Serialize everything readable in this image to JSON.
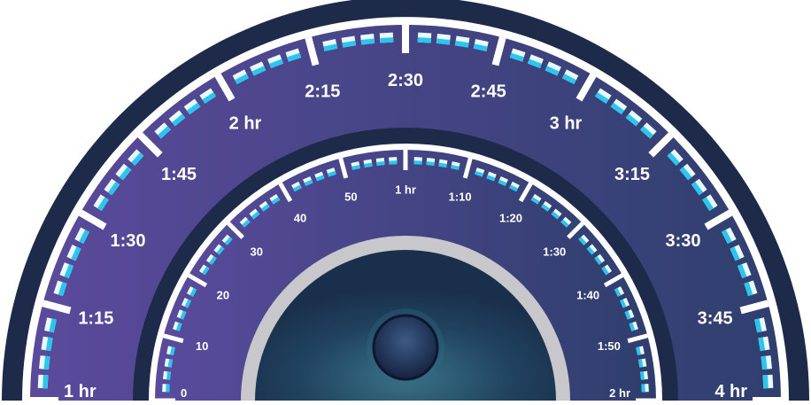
{
  "outer_scale": {
    "labels": [
      "1 hr",
      "1:15",
      "1:30",
      "1:45",
      "2 hr",
      "2:15",
      "2:30",
      "2:45",
      "3 hr",
      "3:15",
      "3:30",
      "3:45",
      "4 hr"
    ],
    "min_minutes": 60,
    "max_minutes": 240,
    "major_step_minutes": 15,
    "minor_ticks_per_major": 4
  },
  "inner_scale": {
    "labels": [
      "0",
      "10",
      "20",
      "30",
      "40",
      "50",
      "1 hr",
      "1:10",
      "1:20",
      "1:30",
      "1:40",
      "1:50",
      "2 hr"
    ],
    "min_minutes": 0,
    "max_minutes": 120,
    "major_step_minutes": 10,
    "minor_ticks_per_major": 4
  },
  "colors": {
    "outer_bezel": "#1e2a4a",
    "outer_face_left": "#5b4a9c",
    "outer_face_right": "#2f3f6e",
    "inner_bezel": "#1e2a4a",
    "inner_face_left": "#5a4b9d",
    "inner_face_right": "#2e3e6c",
    "ring_white": "#ffffff",
    "minor_tick": "#29c6ef",
    "center_ring": "#c8c8cc",
    "center_face": "#1e3b55",
    "knob": "#1b2a4c"
  }
}
